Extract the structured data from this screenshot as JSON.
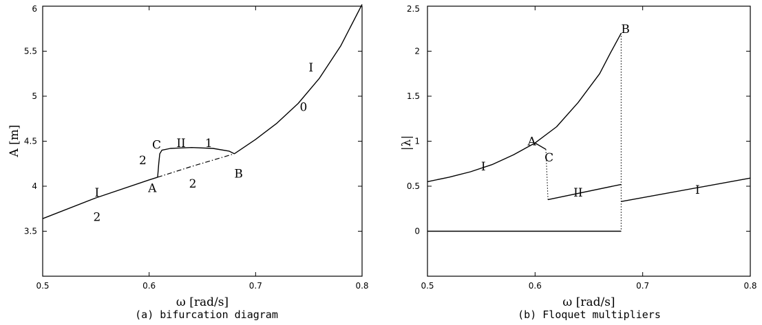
{
  "chart_data": [
    {
      "type": "line",
      "caption": "(a) bifurcation diagram",
      "xlabel": "ω [rad/s]",
      "ylabel": "A [m]",
      "xlim": [
        0.5,
        0.8
      ],
      "ylim": [
        3,
        6
      ],
      "xticks": [
        0.5,
        0.6,
        0.7,
        0.8
      ],
      "xtick_labels": [
        "0.5",
        "0.6",
        "0.7",
        "0.8"
      ],
      "yticks": [
        3.5,
        4,
        4.5,
        5,
        5.5,
        6
      ],
      "ytick_labels": [
        "3.5",
        "4",
        "4.5",
        "5",
        "5.5",
        "6"
      ],
      "series": [
        {
          "style": "solid",
          "x": [
            0.5,
            0.55,
            0.6,
            0.608
          ],
          "y": [
            3.64,
            3.87,
            4.07,
            4.1
          ]
        },
        {
          "style": "dashdot",
          "x": [
            0.608,
            0.64,
            0.68
          ],
          "y": [
            4.1,
            4.22,
            4.36
          ]
        },
        {
          "style": "solid",
          "x": [
            0.608,
            0.609,
            0.61,
            0.612,
            0.62,
            0.64,
            0.66,
            0.675,
            0.68
          ],
          "y": [
            4.1,
            4.25,
            4.36,
            4.4,
            4.42,
            4.43,
            4.42,
            4.39,
            4.36
          ]
        },
        {
          "style": "solid",
          "x": [
            0.68,
            0.7,
            0.72,
            0.74,
            0.76,
            0.78,
            0.8
          ],
          "y": [
            4.36,
            4.52,
            4.7,
            4.92,
            5.2,
            5.56,
            6.02
          ]
        }
      ],
      "annotations": [
        {
          "text": "I",
          "x": 0.551,
          "y": 3.93
        },
        {
          "text": "2",
          "x": 0.551,
          "y": 3.66
        },
        {
          "text": "2",
          "x": 0.594,
          "y": 4.29
        },
        {
          "text": "A",
          "x": 0.603,
          "y": 3.98
        },
        {
          "text": "C",
          "x": 0.607,
          "y": 4.46
        },
        {
          "text": "II",
          "x": 0.63,
          "y": 4.48
        },
        {
          "text": "1",
          "x": 0.656,
          "y": 4.48
        },
        {
          "text": "2",
          "x": 0.641,
          "y": 4.03
        },
        {
          "text": "B",
          "x": 0.684,
          "y": 4.14
        },
        {
          "text": "I",
          "x": 0.752,
          "y": 5.32
        },
        {
          "text": "0",
          "x": 0.745,
          "y": 4.88
        }
      ]
    },
    {
      "type": "line",
      "caption": "(b) Floquet multipliers",
      "xlabel": "ω [rad/s]",
      "ylabel": "|λ|",
      "xlim": [
        0.5,
        0.8
      ],
      "ylim": [
        -0.5,
        2.5
      ],
      "xticks": [
        0.5,
        0.6,
        0.7,
        0.8
      ],
      "xtick_labels": [
        "0.5",
        "0.6",
        "0.7",
        "0.8"
      ],
      "yticks": [
        0,
        0.5,
        1,
        1.5,
        2,
        2.5
      ],
      "ytick_labels": [
        "0",
        "0.5",
        "1",
        "1.5",
        "2",
        "2.5"
      ],
      "series": [
        {
          "style": "solid",
          "x": [
            0.5,
            0.52,
            0.54,
            0.56,
            0.58,
            0.6,
            0.61
          ],
          "y": [
            0.55,
            0.6,
            0.66,
            0.74,
            0.85,
            0.98,
            0.91
          ]
        },
        {
          "style": "solid",
          "x": [
            0.6,
            0.62,
            0.64,
            0.66,
            0.67,
            0.68
          ],
          "y": [
            0.98,
            1.16,
            1.43,
            1.75,
            1.98,
            2.2
          ]
        },
        {
          "style": "dotted",
          "x": [
            0.61,
            0.612
          ],
          "y": [
            0.91,
            0.35
          ]
        },
        {
          "style": "solid",
          "x": [
            0.612,
            0.68
          ],
          "y": [
            0.35,
            0.52
          ]
        },
        {
          "style": "dotted",
          "x": [
            0.68,
            0.68
          ],
          "y": [
            2.2,
            0.0
          ]
        },
        {
          "style": "solid",
          "x": [
            0.5,
            0.68
          ],
          "y": [
            0.0,
            0.0
          ]
        },
        {
          "style": "solid",
          "x": [
            0.68,
            0.8
          ],
          "y": [
            0.33,
            0.59
          ]
        }
      ],
      "annotations": [
        {
          "text": "I",
          "x": 0.552,
          "y": 0.72
        },
        {
          "text": "A",
          "x": 0.597,
          "y": 1.0
        },
        {
          "text": "C",
          "x": 0.613,
          "y": 0.82
        },
        {
          "text": "B",
          "x": 0.684,
          "y": 2.25
        },
        {
          "text": "II",
          "x": 0.64,
          "y": 0.43
        },
        {
          "text": "I",
          "x": 0.751,
          "y": 0.46
        }
      ]
    }
  ]
}
